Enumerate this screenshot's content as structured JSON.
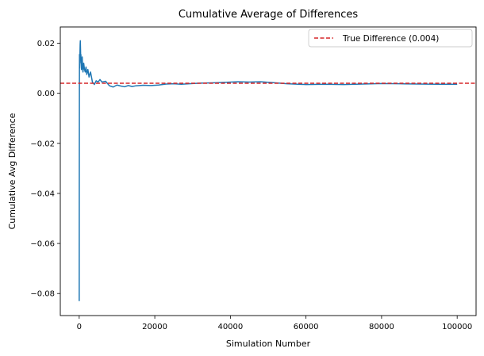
{
  "chart_data": {
    "type": "line",
    "title": "Cumulative Average of Differences",
    "xlabel": "Simulation Number",
    "ylabel": "Cumulative Avg Difference",
    "xlim": [
      -5000,
      105000
    ],
    "ylim": [
      -0.0888,
      0.0265
    ],
    "x_ticks": [
      0,
      20000,
      40000,
      60000,
      80000,
      100000
    ],
    "x_tick_labels": [
      "0",
      "20000",
      "40000",
      "60000",
      "80000",
      "100000"
    ],
    "y_ticks": [
      -0.08,
      -0.06,
      -0.04,
      -0.02,
      0.0,
      0.02
    ],
    "y_tick_labels": [
      "−0.08",
      "−0.06",
      "−0.04",
      "−0.02",
      "0.00",
      "0.02"
    ],
    "grid": false,
    "legend_position": "top-right",
    "series": [
      {
        "kind": "line",
        "color": "#1f77b4",
        "x": [
          1,
          20,
          40,
          60,
          80,
          100,
          130,
          160,
          200,
          250,
          300,
          350,
          400,
          450,
          500,
          600,
          700,
          800,
          900,
          1000,
          1200,
          1400,
          1600,
          1800,
          2000,
          2300,
          2600,
          3000,
          3500,
          4000,
          4500,
          5000,
          5500,
          6000,
          7000,
          8000,
          9000,
          10000,
          11000,
          12000,
          13000,
          14000,
          15000,
          17000,
          19000,
          21000,
          23000,
          25000,
          27000,
          30000,
          33000,
          36000,
          39000,
          42000,
          45000,
          48000,
          51000,
          55000,
          60000,
          65000,
          70000,
          75000,
          80000,
          85000,
          90000,
          95000,
          100000
        ],
        "y": [
          -0.083,
          -0.04,
          -0.012,
          0.006,
          0.0155,
          0.01,
          0.0135,
          0.012,
          0.016,
          0.0195,
          0.021,
          0.0175,
          0.014,
          0.0155,
          0.0125,
          0.0095,
          0.0125,
          0.0145,
          0.0105,
          0.0085,
          0.012,
          0.0095,
          0.0085,
          0.0105,
          0.0075,
          0.0095,
          0.0065,
          0.0085,
          0.0045,
          0.0035,
          0.005,
          0.0045,
          0.0055,
          0.0045,
          0.0048,
          0.003,
          0.0025,
          0.0033,
          0.0029,
          0.0026,
          0.0031,
          0.0027,
          0.003,
          0.0032,
          0.0031,
          0.0033,
          0.0037,
          0.0038,
          0.0036,
          0.0039,
          0.0041,
          0.0042,
          0.0044,
          0.0046,
          0.0045,
          0.0046,
          0.0043,
          0.0038,
          0.0035,
          0.0036,
          0.0035,
          0.0037,
          0.0039,
          0.0038,
          0.0037,
          0.0036,
          0.0036
        ]
      },
      {
        "kind": "hline",
        "name": "True Difference (0.004)",
        "color": "#d62728",
        "value": 0.004,
        "style": "dashed"
      }
    ]
  }
}
